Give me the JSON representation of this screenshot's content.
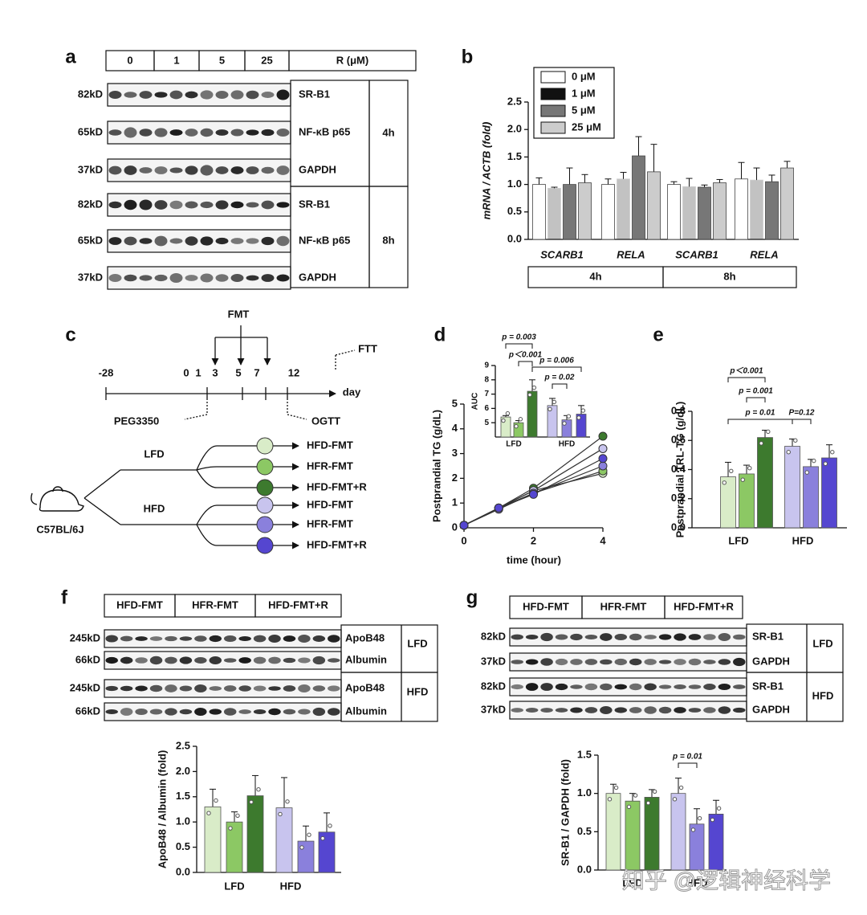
{
  "panel_labels": [
    "a",
    "b",
    "c",
    "d",
    "e",
    "f",
    "g"
  ],
  "blot_a": {
    "header": [
      "0",
      "1",
      "5",
      "25",
      "R (μM)"
    ],
    "rows": [
      {
        "kd": "82kD",
        "protein": "SR-B1"
      },
      {
        "kd": "65kD",
        "protein": "NF-κB p65"
      },
      {
        "kd": "37kD",
        "protein": "GAPDH"
      },
      {
        "kd": "82kD",
        "protein": "SR-B1"
      },
      {
        "kd": "65kD",
        "protein": "NF-κB p65"
      },
      {
        "kd": "37kD",
        "protein": "GAPDH"
      }
    ],
    "times": [
      "4h",
      "8h"
    ]
  },
  "blot_f": {
    "header": [
      "HFD-FMT",
      "HFR-FMT",
      "HFD-FMT+R"
    ],
    "rows": [
      {
        "kd": "245kD",
        "protein": "ApoB48"
      },
      {
        "kd": "66kD",
        "protein": "Albumin"
      },
      {
        "kd": "245kD",
        "protein": "ApoB48"
      },
      {
        "kd": "66kD",
        "protein": "Albumin"
      }
    ],
    "diets": [
      "LFD",
      "HFD"
    ]
  },
  "blot_g": {
    "header": [
      "HFD-FMT",
      "HFR-FMT",
      "HFD-FMT+R"
    ],
    "rows": [
      {
        "kd": "82kD",
        "protein": "SR-B1"
      },
      {
        "kd": "37kD",
        "protein": "GAPDH"
      },
      {
        "kd": "82kD",
        "protein": "SR-B1"
      },
      {
        "kd": "37kD",
        "protein": "GAPDH"
      }
    ],
    "diets": [
      "LFD",
      "HFD"
    ]
  },
  "timeline": {
    "top": "FMT",
    "ftt": "FTT",
    "days": [
      "-28",
      "0",
      "1",
      "3",
      "5",
      "7",
      "12"
    ],
    "unit": "day",
    "peg": "PEG3350",
    "ogtt": "OGTT",
    "strain": "C57BL/6J",
    "diets": [
      "LFD",
      "HFD"
    ],
    "groups": [
      "HFD-FMT",
      "HFR-FMT",
      "HFD-FMT+R",
      "HFD-FMT",
      "HFR-FMT",
      "HFD-FMT+R"
    ],
    "colors": [
      "#d9ecc8",
      "#8cc864",
      "#3d7a2e",
      "#c8c4ee",
      "#8a80dc",
      "#5546d0"
    ]
  },
  "chart_data": [
    {
      "type": "grouped-bar",
      "ylabel": "mRNA / ACTB (fold)",
      "categories": [
        "SCARB1",
        "RELA",
        "SCARB1",
        "RELA"
      ],
      "groups": [
        "4h",
        "8h"
      ],
      "series": [
        {
          "name": "0 μM",
          "color": "#ffffff",
          "values": [
            1.0,
            1.0,
            1.0,
            1.1
          ],
          "errors": [
            0.12,
            0.1,
            0.05,
            0.3
          ]
        },
        {
          "name": "1 μM",
          "color": "#111111",
          "values": [
            0.93,
            1.1,
            0.96,
            1.08
          ],
          "errors": [
            0.02,
            0.12,
            0.15,
            0.22
          ]
        },
        {
          "name": "5 μM",
          "color": "#777777",
          "values": [
            1.0,
            1.52,
            0.95,
            1.05
          ],
          "errors": [
            0.3,
            0.35,
            0.04,
            0.12
          ]
        },
        {
          "name": "25 μM",
          "color": "#cccccc",
          "values": [
            1.03,
            1.23,
            1.03,
            1.3
          ],
          "errors": [
            0.15,
            0.5,
            0.06,
            0.12
          ]
        }
      ],
      "ylim": [
        0,
        2.5
      ],
      "yticks": [
        {
          "value": 0,
          "label": "0.0"
        },
        {
          "value": 0.5,
          "label": "0.5"
        },
        {
          "value": 1,
          "label": "1.0"
        },
        {
          "value": 1.5,
          "label": "1.5"
        },
        {
          "value": 2,
          "label": "2.0"
        },
        {
          "value": 2.5,
          "label": "2.5"
        }
      ],
      "legend": "top-left"
    },
    {
      "type": "line",
      "xlabel": "time (hour)",
      "ylabel": "Postprandial TG (g/dL)",
      "x": [
        0,
        1,
        2,
        4
      ],
      "series": [
        {
          "color": "#d9ecc8",
          "values": [
            0.1,
            0.8,
            1.5,
            2.2
          ]
        },
        {
          "color": "#8cc864",
          "values": [
            0.1,
            0.8,
            1.4,
            2.3
          ]
        },
        {
          "color": "#3d7a2e",
          "values": [
            0.1,
            0.8,
            1.6,
            3.7
          ]
        },
        {
          "color": "#c8c4ee",
          "values": [
            0.1,
            0.8,
            1.5,
            3.2
          ]
        },
        {
          "color": "#8a80dc",
          "values": [
            0.1,
            0.75,
            1.4,
            2.5
          ]
        },
        {
          "color": "#5546d0",
          "values": [
            0.1,
            0.8,
            1.35,
            2.8
          ]
        }
      ],
      "xlim": [
        0,
        4
      ],
      "xticks": [
        0,
        2,
        4
      ],
      "ylim": [
        0,
        5
      ],
      "yticks": [
        0,
        1,
        2,
        3,
        4,
        5
      ]
    },
    {
      "type": "bar",
      "ylabel": "AUC",
      "groups": [
        "LFD",
        "HFD"
      ],
      "values": [
        5.4,
        5.0,
        7.2,
        6.2,
        5.2,
        5.6
      ],
      "errors": [
        0.1,
        0.15,
        0.8,
        0.5,
        0.3,
        0.6
      ],
      "colors": [
        "#d9ecc8",
        "#8cc864",
        "#3d7a2e",
        "#c8c4ee",
        "#8a80dc",
        "#5546d0"
      ],
      "ylim": [
        4,
        9
      ],
      "yticks": [
        5,
        6,
        7,
        8,
        9
      ],
      "annotations": [
        "p = 0.003",
        "p＜0.001",
        "p = 0.006",
        "p = 0.02"
      ]
    },
    {
      "type": "bar",
      "ylabel": "Postprandial TRL-TG (g/dL)",
      "groups": [
        "LFD",
        "HFD"
      ],
      "values": [
        0.35,
        0.37,
        0.62,
        0.56,
        0.42,
        0.48
      ],
      "errors": [
        0.1,
        0.06,
        0.05,
        0.05,
        0.05,
        0.09
      ],
      "colors": [
        "#d9ecc8",
        "#8cc864",
        "#3d7a2e",
        "#c8c4ee",
        "#8a80dc",
        "#5546d0"
      ],
      "ylim": [
        0,
        0.8
      ],
      "yticks": [
        {
          "value": 0,
          "label": "0.0"
        },
        {
          "value": 0.2,
          "label": "0.2"
        },
        {
          "value": 0.4,
          "label": "0.4"
        },
        {
          "value": 0.6,
          "label": "0.6"
        },
        {
          "value": 0.8,
          "label": "0.8"
        }
      ],
      "annotations": [
        "p＜0.001",
        "p = 0.001",
        "p = 0.01",
        "P=0.12"
      ]
    },
    {
      "type": "bar",
      "ylabel": "ApoB48 / Albumin (fold)",
      "groups": [
        "LFD",
        "HFD"
      ],
      "values": [
        1.3,
        1.0,
        1.52,
        1.28,
        0.62,
        0.8
      ],
      "errors": [
        0.35,
        0.2,
        0.4,
        0.6,
        0.3,
        0.38
      ],
      "colors": [
        "#d9ecc8",
        "#8cc864",
        "#3d7a2e",
        "#c8c4ee",
        "#8a80dc",
        "#5546d0"
      ],
      "ylim": [
        0,
        2.5
      ],
      "yticks": [
        {
          "value": 0,
          "label": "0.0"
        },
        {
          "value": 0.5,
          "label": "0.5"
        },
        {
          "value": 1,
          "label": "1.0"
        },
        {
          "value": 1.5,
          "label": "1.5"
        },
        {
          "value": 2,
          "label": "2.0"
        },
        {
          "value": 2.5,
          "label": "2.5"
        }
      ]
    },
    {
      "type": "bar",
      "ylabel": "SR-B1 / GAPDH (fold)",
      "groups": [
        "LFD",
        "HFD"
      ],
      "values": [
        1.0,
        0.9,
        0.95,
        1.0,
        0.6,
        0.73
      ],
      "errors": [
        0.12,
        0.1,
        0.1,
        0.2,
        0.2,
        0.18
      ],
      "colors": [
        "#d9ecc8",
        "#8cc864",
        "#3d7a2e",
        "#c8c4ee",
        "#8a80dc",
        "#5546d0"
      ],
      "ylim": [
        0,
        1.5
      ],
      "yticks": [
        {
          "value": 0,
          "label": "0.0"
        },
        {
          "value": 0.5,
          "label": "0.5"
        },
        {
          "value": 1,
          "label": "1.0"
        },
        {
          "value": 1.5,
          "label": "1.5"
        }
      ],
      "annotations": [
        "p = 0.01"
      ]
    }
  ],
  "watermark": "知乎 @逻辑神经科学"
}
